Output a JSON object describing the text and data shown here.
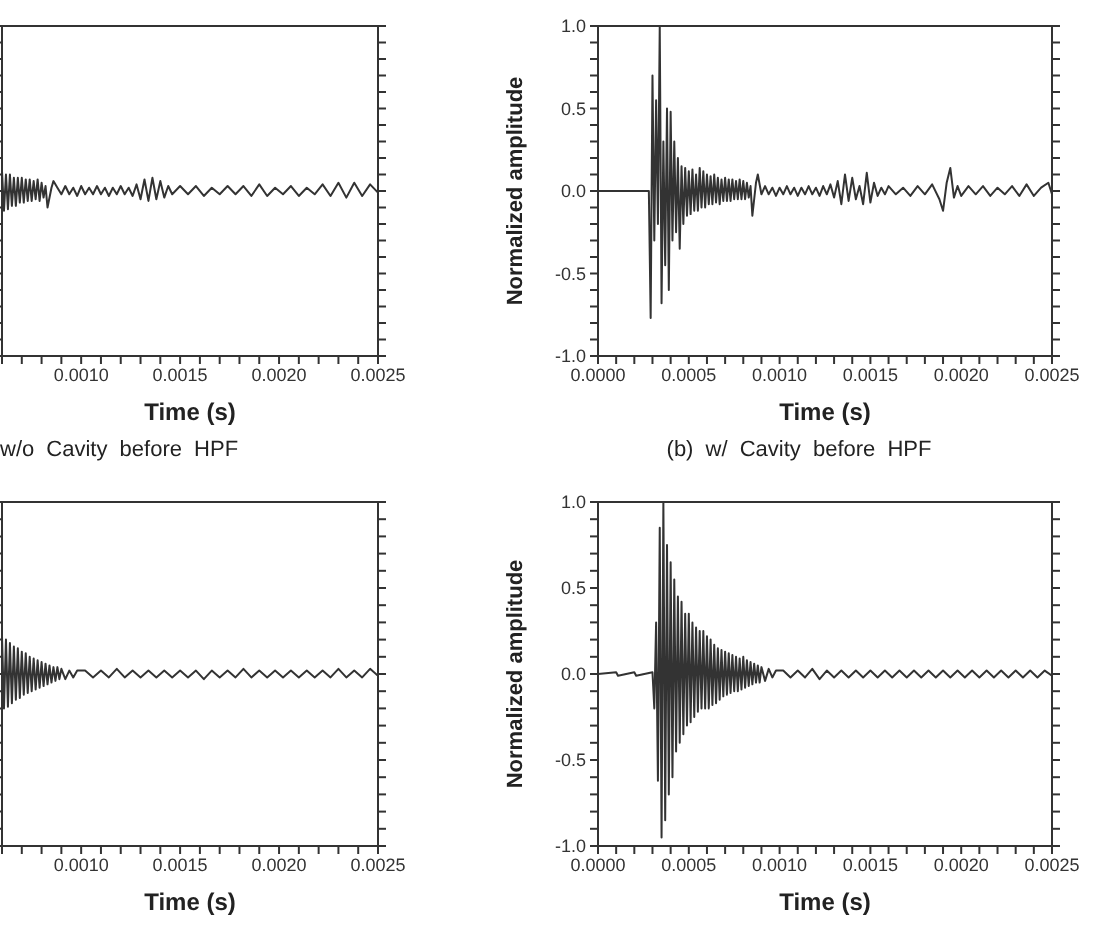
{
  "chart_data": [
    {
      "type": "line",
      "title": "w/o Cavity before HPF",
      "xlabel": "Time (s)",
      "tick_labels": "x",
      "xlim": [
        0.0006,
        0.0025
      ],
      "ylim": [
        -1,
        1
      ],
      "xticks": [
        {
          "value": 0.0006,
          "label": null
        },
        {
          "value": 0.0007,
          "label": null
        },
        {
          "value": 0.0008,
          "label": null
        },
        {
          "value": 0.0009,
          "label": null
        },
        {
          "value": 0.001,
          "label": "0.0010"
        },
        {
          "value": 0.0011,
          "label": null
        },
        {
          "value": 0.0012,
          "label": null
        },
        {
          "value": 0.0013,
          "label": null
        },
        {
          "value": 0.0014,
          "label": null
        },
        {
          "value": 0.0015,
          "label": "0.0015"
        },
        {
          "value": 0.0016,
          "label": null
        },
        {
          "value": 0.0017,
          "label": null
        },
        {
          "value": 0.0018,
          "label": null
        },
        {
          "value": 0.0019,
          "label": null
        },
        {
          "value": 0.002,
          "label": "0.0020"
        },
        {
          "value": 0.0021,
          "label": null
        },
        {
          "value": 0.0022,
          "label": null
        },
        {
          "value": 0.0023,
          "label": null
        },
        {
          "value": 0.0024,
          "label": null
        },
        {
          "value": 0.0025,
          "label": "0.0025"
        }
      ],
      "yticks": [
        {
          "value": -1,
          "label": null
        },
        {
          "value": -0.9,
          "label": null
        },
        {
          "value": -0.8,
          "label": null
        },
        {
          "value": -0.7,
          "label": null
        },
        {
          "value": -0.6,
          "label": null
        },
        {
          "value": -0.5,
          "label": null
        },
        {
          "value": -0.4,
          "label": null
        },
        {
          "value": -0.3,
          "label": null
        },
        {
          "value": -0.2,
          "label": null
        },
        {
          "value": -0.1,
          "label": null
        },
        {
          "value": 0,
          "label": null
        },
        {
          "value": 0.1,
          "label": null
        },
        {
          "value": 0.2,
          "label": null
        },
        {
          "value": 0.3,
          "label": null
        },
        {
          "value": 0.4,
          "label": null
        },
        {
          "value": 0.5,
          "label": null
        },
        {
          "value": 0.6,
          "label": null
        },
        {
          "value": 0.7,
          "label": null
        },
        {
          "value": 0.8,
          "label": null
        },
        {
          "value": 0.9,
          "label": null
        },
        {
          "value": 1,
          "label": null
        }
      ],
      "x": [
        0.0006,
        0.00061,
        0.00062,
        0.00063,
        0.00064,
        0.00065,
        0.00066,
        0.00067,
        0.00068,
        0.00069,
        0.0007,
        0.00071,
        0.00072,
        0.00073,
        0.00074,
        0.00075,
        0.00076,
        0.00077,
        0.00078,
        0.00079,
        0.0008,
        0.00081,
        0.00082,
        0.00083,
        0.00085,
        0.00086,
        0.00088,
        0.0009,
        0.00092,
        0.00094,
        0.00096,
        0.00098,
        0.001,
        0.00102,
        0.00104,
        0.00106,
        0.00108,
        0.0011,
        0.00112,
        0.00114,
        0.00116,
        0.00118,
        0.0012,
        0.00122,
        0.00124,
        0.00126,
        0.00128,
        0.0013,
        0.00132,
        0.00134,
        0.00136,
        0.00138,
        0.0014,
        0.00142,
        0.00144,
        0.00146,
        0.0015,
        0.00154,
        0.00158,
        0.00162,
        0.00166,
        0.0017,
        0.00174,
        0.00178,
        0.00182,
        0.00186,
        0.0019,
        0.00194,
        0.00198,
        0.00202,
        0.00206,
        0.0021,
        0.00214,
        0.00218,
        0.00222,
        0.00226,
        0.0023,
        0.00234,
        0.00238,
        0.00242,
        0.00246,
        0.0025
      ],
      "series": [
        {
          "color": "#333333",
          "values": [
            0.12,
            -0.12,
            0.1,
            -0.11,
            0.1,
            -0.09,
            0.08,
            -0.09,
            0.08,
            -0.07,
            0.08,
            -0.07,
            0.07,
            -0.06,
            0.07,
            -0.06,
            0.06,
            -0.05,
            0.07,
            -0.06,
            0.05,
            -0.04,
            0.03,
            -0.1,
            0.02,
            0.06,
            0.02,
            -0.02,
            0.03,
            -0.02,
            0.02,
            -0.03,
            0.03,
            -0.02,
            0.02,
            -0.02,
            0.03,
            -0.02,
            0.02,
            -0.03,
            0.02,
            -0.02,
            0.03,
            -0.02,
            0.02,
            -0.03,
            0.04,
            -0.05,
            0.07,
            -0.06,
            0.08,
            -0.05,
            0.06,
            -0.04,
            0.03,
            -0.02,
            0.03,
            -0.02,
            0.03,
            -0.03,
            0.02,
            -0.02,
            0.03,
            -0.02,
            0.03,
            -0.03,
            0.04,
            -0.03,
            0.02,
            -0.02,
            0.03,
            -0.03,
            0.02,
            -0.02,
            0.04,
            -0.03,
            0.05,
            -0.04,
            0.05,
            -0.03,
            0.04,
            -0.01
          ]
        }
      ]
    },
    {
      "type": "line",
      "title": "(b) w/ Cavity before HPF",
      "xlabel": "Time (s)",
      "ylabel": "Normalized amplitude",
      "xlim": [
        0,
        0.0025
      ],
      "ylim": [
        -1,
        1
      ],
      "xticks": [
        {
          "value": 0,
          "label": "0.0000"
        },
        {
          "value": 0.0001,
          "label": null
        },
        {
          "value": 0.0002,
          "label": null
        },
        {
          "value": 0.0003,
          "label": null
        },
        {
          "value": 0.0004,
          "label": null
        },
        {
          "value": 0.0005,
          "label": "0.0005"
        },
        {
          "value": 0.0006,
          "label": null
        },
        {
          "value": 0.0007,
          "label": null
        },
        {
          "value": 0.0008,
          "label": null
        },
        {
          "value": 0.0009,
          "label": null
        },
        {
          "value": 0.001,
          "label": "0.0010"
        },
        {
          "value": 0.0011,
          "label": null
        },
        {
          "value": 0.0012,
          "label": null
        },
        {
          "value": 0.0013,
          "label": null
        },
        {
          "value": 0.0014,
          "label": null
        },
        {
          "value": 0.0015,
          "label": "0.0015"
        },
        {
          "value": 0.0016,
          "label": null
        },
        {
          "value": 0.0017,
          "label": null
        },
        {
          "value": 0.0018,
          "label": null
        },
        {
          "value": 0.0019,
          "label": null
        },
        {
          "value": 0.002,
          "label": "0.0020"
        },
        {
          "value": 0.0021,
          "label": null
        },
        {
          "value": 0.0022,
          "label": null
        },
        {
          "value": 0.0023,
          "label": null
        },
        {
          "value": 0.0024,
          "label": null
        },
        {
          "value": 0.0025,
          "label": "0.0025"
        }
      ],
      "yticks": [
        {
          "value": -1,
          "label": "-1.0"
        },
        {
          "value": -0.9,
          "label": null
        },
        {
          "value": -0.8,
          "label": null
        },
        {
          "value": -0.7,
          "label": null
        },
        {
          "value": -0.6,
          "label": null
        },
        {
          "value": -0.5,
          "label": "-0.5"
        },
        {
          "value": -0.4,
          "label": null
        },
        {
          "value": -0.3,
          "label": null
        },
        {
          "value": -0.2,
          "label": null
        },
        {
          "value": -0.1,
          "label": null
        },
        {
          "value": 0,
          "label": "0.0"
        },
        {
          "value": 0.1,
          "label": null
        },
        {
          "value": 0.2,
          "label": null
        },
        {
          "value": 0.3,
          "label": null
        },
        {
          "value": 0.4,
          "label": null
        },
        {
          "value": 0.5,
          "label": "0.5"
        },
        {
          "value": 0.6,
          "label": null
        },
        {
          "value": 0.7,
          "label": null
        },
        {
          "value": 0.8,
          "label": null
        },
        {
          "value": 0.9,
          "label": null
        },
        {
          "value": 1,
          "label": "1.0"
        }
      ],
      "x": [
        0,
        0.00028,
        0.00029,
        0.0003,
        0.00031,
        0.00032,
        0.00033,
        0.00034,
        0.00035,
        0.00036,
        0.00037,
        0.00038,
        0.00039,
        0.0004,
        0.00041,
        0.00042,
        0.00043,
        0.00044,
        0.00045,
        0.00046,
        0.00047,
        0.00048,
        0.00049,
        0.0005,
        0.00051,
        0.00052,
        0.00053,
        0.00054,
        0.00055,
        0.00056,
        0.00057,
        0.00058,
        0.00059,
        0.0006,
        0.00061,
        0.00062,
        0.00063,
        0.00064,
        0.00065,
        0.00066,
        0.00067,
        0.00068,
        0.00069,
        0.0007,
        0.00071,
        0.00072,
        0.00073,
        0.00074,
        0.00075,
        0.00076,
        0.00077,
        0.00078,
        0.00079,
        0.0008,
        0.00081,
        0.00082,
        0.00083,
        0.00084,
        0.00085,
        0.00087,
        0.00088,
        0.0009,
        0.00092,
        0.00094,
        0.00096,
        0.00098,
        0.001,
        0.00102,
        0.00104,
        0.00106,
        0.00108,
        0.0011,
        0.00112,
        0.00114,
        0.00116,
        0.00118,
        0.0012,
        0.00122,
        0.00124,
        0.00126,
        0.00128,
        0.0013,
        0.00132,
        0.00134,
        0.00136,
        0.00138,
        0.0014,
        0.00142,
        0.00144,
        0.00146,
        0.00148,
        0.0015,
        0.00152,
        0.00154,
        0.00156,
        0.00158,
        0.0016,
        0.00164,
        0.00168,
        0.00172,
        0.00176,
        0.0018,
        0.00184,
        0.00188,
        0.0019,
        0.00192,
        0.00194,
        0.00196,
        0.00198,
        0.002,
        0.00204,
        0.00208,
        0.00212,
        0.00216,
        0.0022,
        0.00224,
        0.00228,
        0.00232,
        0.00236,
        0.0024,
        0.00244,
        0.00248,
        0.0025
      ],
      "series": [
        {
          "color": "#333333",
          "values": [
            0,
            0,
            -0.77,
            0.7,
            -0.3,
            0.55,
            -0.2,
            1.0,
            -0.68,
            0.3,
            -0.45,
            0.5,
            -0.6,
            0.48,
            -0.3,
            0.3,
            -0.25,
            0.2,
            -0.35,
            0.15,
            -0.2,
            0.14,
            -0.15,
            0.12,
            -0.14,
            0.13,
            -0.12,
            0.1,
            -0.12,
            0.14,
            -0.1,
            0.12,
            -0.1,
            0.1,
            -0.08,
            0.09,
            -0.08,
            0.1,
            -0.07,
            0.08,
            -0.08,
            0.07,
            -0.06,
            0.08,
            -0.06,
            0.07,
            -0.06,
            0.07,
            -0.05,
            0.06,
            -0.05,
            0.07,
            -0.05,
            0.06,
            -0.05,
            0.05,
            -0.04,
            0.03,
            -0.15,
            0.05,
            0.1,
            -0.02,
            0.03,
            -0.02,
            0.02,
            -0.03,
            0.02,
            -0.02,
            0.03,
            -0.02,
            0.02,
            -0.03,
            0.02,
            -0.02,
            0.03,
            -0.02,
            0.02,
            -0.03,
            0.03,
            -0.02,
            0.04,
            -0.04,
            0.06,
            -0.08,
            0.1,
            -0.06,
            0.08,
            -0.05,
            0.03,
            -0.08,
            0.11,
            -0.07,
            0.05,
            -0.03,
            0.02,
            -0.02,
            0.03,
            -0.02,
            0.02,
            -0.03,
            0.03,
            -0.02,
            0.04,
            -0.05,
            -0.12,
            0.05,
            0.14,
            -0.04,
            0.03,
            -0.03,
            0.03,
            -0.02,
            0.03,
            -0.03,
            0.02,
            -0.02,
            0.03,
            -0.03,
            0.04,
            -0.03,
            0.02,
            0.05,
            -0.02
          ]
        }
      ]
    },
    {
      "type": "line",
      "xlabel": "Time (s)",
      "tick_labels": "x",
      "xlim": [
        0.0006,
        0.0025
      ],
      "ylim": [
        -1,
        1
      ],
      "xticks": [
        {
          "value": 0.0006,
          "label": null
        },
        {
          "value": 0.0007,
          "label": null
        },
        {
          "value": 0.0008,
          "label": null
        },
        {
          "value": 0.0009,
          "label": null
        },
        {
          "value": 0.001,
          "label": "0.0010"
        },
        {
          "value": 0.0011,
          "label": null
        },
        {
          "value": 0.0012,
          "label": null
        },
        {
          "value": 0.0013,
          "label": null
        },
        {
          "value": 0.0014,
          "label": null
        },
        {
          "value": 0.0015,
          "label": "0.0015"
        },
        {
          "value": 0.0016,
          "label": null
        },
        {
          "value": 0.0017,
          "label": null
        },
        {
          "value": 0.0018,
          "label": null
        },
        {
          "value": 0.0019,
          "label": null
        },
        {
          "value": 0.002,
          "label": "0.0020"
        },
        {
          "value": 0.0021,
          "label": null
        },
        {
          "value": 0.0022,
          "label": null
        },
        {
          "value": 0.0023,
          "label": null
        },
        {
          "value": 0.0024,
          "label": null
        },
        {
          "value": 0.0025,
          "label": "0.0025"
        }
      ],
      "yticks": [
        {
          "value": -1,
          "label": null
        },
        {
          "value": -0.9,
          "label": null
        },
        {
          "value": -0.8,
          "label": null
        },
        {
          "value": -0.7,
          "label": null
        },
        {
          "value": -0.6,
          "label": null
        },
        {
          "value": -0.5,
          "label": null
        },
        {
          "value": -0.4,
          "label": null
        },
        {
          "value": -0.3,
          "label": null
        },
        {
          "value": -0.2,
          "label": null
        },
        {
          "value": -0.1,
          "label": null
        },
        {
          "value": 0,
          "label": null
        },
        {
          "value": 0.1,
          "label": null
        },
        {
          "value": 0.2,
          "label": null
        },
        {
          "value": 0.3,
          "label": null
        },
        {
          "value": 0.4,
          "label": null
        },
        {
          "value": 0.5,
          "label": null
        },
        {
          "value": 0.6,
          "label": null
        },
        {
          "value": 0.7,
          "label": null
        },
        {
          "value": 0.8,
          "label": null
        },
        {
          "value": 0.9,
          "label": null
        },
        {
          "value": 1,
          "label": null
        }
      ],
      "x": [
        0.0006,
        0.00061,
        0.00062,
        0.00063,
        0.00064,
        0.00065,
        0.00066,
        0.00067,
        0.00068,
        0.00069,
        0.0007,
        0.00071,
        0.00072,
        0.00073,
        0.00074,
        0.00075,
        0.00076,
        0.00077,
        0.00078,
        0.00079,
        0.0008,
        0.00081,
        0.00082,
        0.00083,
        0.00084,
        0.00085,
        0.00086,
        0.00087,
        0.00088,
        0.00089,
        0.0009,
        0.00092,
        0.00094,
        0.00096,
        0.00098,
        0.00102,
        0.00106,
        0.0011,
        0.00114,
        0.00118,
        0.00122,
        0.00126,
        0.0013,
        0.00134,
        0.00138,
        0.00142,
        0.00146,
        0.0015,
        0.00154,
        0.00158,
        0.00162,
        0.00166,
        0.0017,
        0.00174,
        0.00178,
        0.00182,
        0.00186,
        0.0019,
        0.00194,
        0.00198,
        0.00202,
        0.00206,
        0.0021,
        0.00214,
        0.00218,
        0.00222,
        0.00226,
        0.0023,
        0.00234,
        0.00238,
        0.00242,
        0.00246,
        0.0025
      ],
      "series": [
        {
          "color": "#333333",
          "values": [
            0.22,
            -0.2,
            0.2,
            -0.19,
            0.18,
            -0.17,
            0.16,
            -0.15,
            0.15,
            -0.14,
            0.13,
            -0.12,
            0.12,
            -0.11,
            0.1,
            -0.1,
            0.09,
            -0.09,
            0.08,
            -0.08,
            0.07,
            -0.07,
            0.06,
            -0.06,
            0.05,
            -0.05,
            0.04,
            -0.04,
            0.04,
            -0.03,
            0.03,
            -0.03,
            0.02,
            -0.02,
            0.02,
            0.02,
            -0.02,
            0.02,
            -0.02,
            0.03,
            -0.02,
            0.02,
            -0.02,
            0.02,
            -0.02,
            0.02,
            -0.02,
            0.02,
            -0.02,
            0.02,
            -0.03,
            0.02,
            -0.02,
            0.02,
            -0.02,
            0.03,
            -0.02,
            0.02,
            -0.02,
            0.02,
            -0.02,
            0.02,
            -0.02,
            0.02,
            -0.02,
            0.02,
            -0.02,
            0.03,
            -0.02,
            0.02,
            -0.02,
            0.03,
            -0.01
          ]
        }
      ]
    },
    {
      "type": "line",
      "xlabel": "Time (s)",
      "ylabel": "Normalized amplitude",
      "xlim": [
        0,
        0.0025
      ],
      "ylim": [
        -1,
        1
      ],
      "xticks": [
        {
          "value": 0,
          "label": "0.0000"
        },
        {
          "value": 0.0001,
          "label": null
        },
        {
          "value": 0.0002,
          "label": null
        },
        {
          "value": 0.0003,
          "label": null
        },
        {
          "value": 0.0004,
          "label": null
        },
        {
          "value": 0.0005,
          "label": "0.0005"
        },
        {
          "value": 0.0006,
          "label": null
        },
        {
          "value": 0.0007,
          "label": null
        },
        {
          "value": 0.0008,
          "label": null
        },
        {
          "value": 0.0009,
          "label": null
        },
        {
          "value": 0.001,
          "label": "0.0010"
        },
        {
          "value": 0.0011,
          "label": null
        },
        {
          "value": 0.0012,
          "label": null
        },
        {
          "value": 0.0013,
          "label": null
        },
        {
          "value": 0.0014,
          "label": null
        },
        {
          "value": 0.0015,
          "label": "0.0015"
        },
        {
          "value": 0.0016,
          "label": null
        },
        {
          "value": 0.0017,
          "label": null
        },
        {
          "value": 0.0018,
          "label": null
        },
        {
          "value": 0.0019,
          "label": null
        },
        {
          "value": 0.002,
          "label": "0.0020"
        },
        {
          "value": 0.0021,
          "label": null
        },
        {
          "value": 0.0022,
          "label": null
        },
        {
          "value": 0.0023,
          "label": null
        },
        {
          "value": 0.0024,
          "label": null
        },
        {
          "value": 0.0025,
          "label": "0.0025"
        }
      ],
      "yticks": [
        {
          "value": -1,
          "label": "-1.0"
        },
        {
          "value": -0.9,
          "label": null
        },
        {
          "value": -0.8,
          "label": null
        },
        {
          "value": -0.7,
          "label": null
        },
        {
          "value": -0.6,
          "label": null
        },
        {
          "value": -0.5,
          "label": "-0.5"
        },
        {
          "value": -0.4,
          "label": null
        },
        {
          "value": -0.3,
          "label": null
        },
        {
          "value": -0.2,
          "label": null
        },
        {
          "value": -0.1,
          "label": null
        },
        {
          "value": 0,
          "label": "0.0"
        },
        {
          "value": 0.1,
          "label": null
        },
        {
          "value": 0.2,
          "label": null
        },
        {
          "value": 0.3,
          "label": null
        },
        {
          "value": 0.4,
          "label": null
        },
        {
          "value": 0.5,
          "label": "0.5"
        },
        {
          "value": 0.6,
          "label": null
        },
        {
          "value": 0.7,
          "label": null
        },
        {
          "value": 0.8,
          "label": null
        },
        {
          "value": 0.9,
          "label": null
        },
        {
          "value": 1,
          "label": "1.0"
        }
      ],
      "x": [
        0,
        0.0001,
        0.00011,
        0.0002,
        0.00021,
        0.0003,
        0.00031,
        0.00032,
        0.00033,
        0.00034,
        0.00035,
        0.00036,
        0.00037,
        0.00038,
        0.00039,
        0.0004,
        0.00041,
        0.00042,
        0.00043,
        0.00044,
        0.00045,
        0.00046,
        0.00047,
        0.00048,
        0.00049,
        0.0005,
        0.00051,
        0.00052,
        0.00053,
        0.00054,
        0.00055,
        0.00056,
        0.00057,
        0.00058,
        0.00059,
        0.0006,
        0.00061,
        0.00062,
        0.00063,
        0.00064,
        0.00065,
        0.00066,
        0.00067,
        0.00068,
        0.00069,
        0.0007,
        0.00071,
        0.00072,
        0.00073,
        0.00074,
        0.00075,
        0.00076,
        0.00077,
        0.00078,
        0.00079,
        0.0008,
        0.00081,
        0.00082,
        0.00083,
        0.00084,
        0.00085,
        0.00086,
        0.00087,
        0.00088,
        0.00089,
        0.0009,
        0.00092,
        0.00094,
        0.00096,
        0.00098,
        0.00102,
        0.00106,
        0.0011,
        0.00114,
        0.00118,
        0.00122,
        0.00126,
        0.0013,
        0.00134,
        0.00138,
        0.00142,
        0.00146,
        0.0015,
        0.00154,
        0.00158,
        0.00162,
        0.00166,
        0.0017,
        0.00174,
        0.00178,
        0.00182,
        0.00186,
        0.0019,
        0.00194,
        0.00198,
        0.00202,
        0.00206,
        0.0021,
        0.00214,
        0.00218,
        0.00222,
        0.00226,
        0.0023,
        0.00234,
        0.00238,
        0.00242,
        0.00246,
        0.0025
      ],
      "series": [
        {
          "color": "#333333",
          "values": [
            0,
            0.01,
            -0.01,
            0.01,
            -0.01,
            0.01,
            -0.2,
            0.3,
            -0.62,
            0.85,
            -0.95,
            1.0,
            -0.85,
            0.75,
            -0.7,
            0.65,
            -0.6,
            0.55,
            -0.45,
            0.45,
            -0.4,
            0.42,
            -0.35,
            0.35,
            -0.3,
            0.35,
            -0.28,
            0.3,
            -0.25,
            0.27,
            -0.22,
            0.25,
            -0.2,
            0.25,
            -0.2,
            0.22,
            -0.2,
            0.2,
            -0.18,
            0.17,
            -0.17,
            0.15,
            -0.15,
            0.14,
            -0.13,
            0.13,
            -0.12,
            0.12,
            -0.11,
            0.11,
            -0.1,
            0.1,
            -0.1,
            0.09,
            -0.09,
            0.1,
            -0.08,
            0.08,
            -0.07,
            0.07,
            -0.06,
            0.06,
            -0.05,
            0.05,
            -0.05,
            0.04,
            -0.04,
            0.03,
            -0.02,
            0.02,
            0.02,
            -0.02,
            0.02,
            -0.02,
            0.03,
            -0.03,
            0.02,
            -0.02,
            0.02,
            -0.02,
            0.02,
            -0.02,
            0.02,
            -0.02,
            0.02,
            -0.02,
            0.02,
            -0.02,
            0.02,
            -0.02,
            0.02,
            -0.02,
            0.02,
            -0.02,
            0.02,
            -0.02,
            0.02,
            -0.02,
            0.02,
            -0.02,
            0.02,
            -0.02,
            0.02,
            -0.02,
            0.02,
            -0.02,
            0.02,
            -0.01
          ]
        }
      ]
    }
  ]
}
